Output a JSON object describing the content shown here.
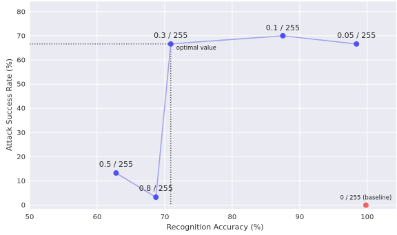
{
  "chart_data": {
    "type": "scatter",
    "xlabel": "Recognition Accuracy (%)",
    "ylabel": "Attack Success Rate (%)",
    "xlim": [
      50,
      104.3
    ],
    "ylim": [
      -1.5,
      84.2
    ],
    "xticks": [
      50,
      60,
      70,
      80,
      90,
      100
    ],
    "yticks": [
      0,
      10,
      20,
      30,
      40,
      50,
      60,
      70,
      80
    ],
    "grid": true,
    "background": "#eaeaf2",
    "series": [
      {
        "color": "#4a4af0",
        "line_color": "#a3a3ee",
        "points": [
          {
            "label": "0.5 / 255",
            "x": 62.8,
            "y": 13.3
          },
          {
            "label": "0.8 / 255",
            "x": 68.7,
            "y": 3.3
          },
          {
            "label": "0.3 / 255",
            "x": 70.9,
            "y": 66.6
          },
          {
            "label": "0.1 / 255",
            "x": 87.5,
            "y": 70.0
          },
          {
            "label": "0.05 / 255",
            "x": 98.4,
            "y": 66.6
          }
        ]
      },
      {
        "color": "#f05a5a",
        "points": [
          {
            "label": "0 / 255 (baseline)",
            "x": 99.8,
            "y": 0.0
          }
        ]
      }
    ],
    "annotations": [
      {
        "text": "optimal value",
        "x": 70.9,
        "y": 66.6
      }
    ],
    "reference_lines": {
      "x": 70.9,
      "y": 66.6,
      "style": "dotted"
    }
  }
}
